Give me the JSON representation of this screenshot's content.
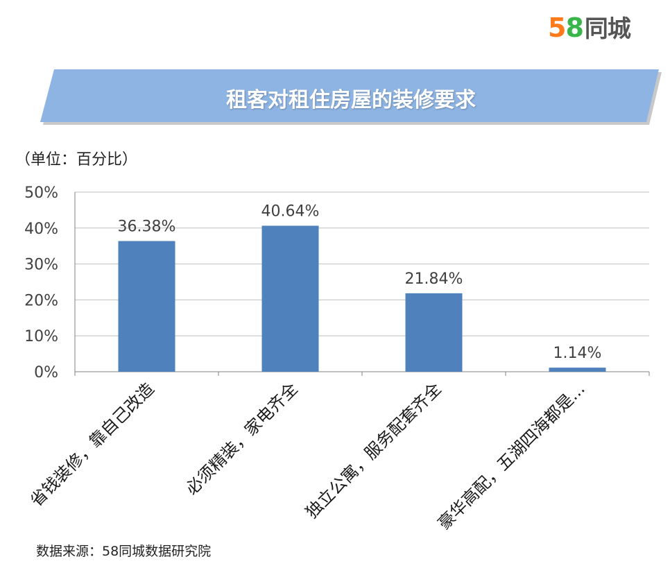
{
  "logo": {
    "num5": "5",
    "num8": "8",
    "name": "同城"
  },
  "chart_data": {
    "type": "bar",
    "title": "租客对租住房屋的装修要求",
    "unit_label": "（单位：百分比）",
    "categories": [
      "省钱装修，靠自己改造",
      "必须精装，家电齐全",
      "独立公寓，服务配套齐全",
      "豪华高配，五湖四海都是..."
    ],
    "values": [
      36.38,
      40.64,
      21.84,
      1.14
    ],
    "data_labels": [
      "36.38%",
      "40.64%",
      "21.84%",
      "1.14%"
    ],
    "y_ticks": [
      "0%",
      "10%",
      "20%",
      "30%",
      "40%",
      "50%"
    ],
    "ylim": [
      0,
      50
    ],
    "xlabel": "",
    "ylabel": "",
    "grid": true,
    "colors": {
      "bar": "#4f81bd",
      "banner": "#8eb4e3",
      "grid": "#bfbfbf"
    },
    "source": "数据来源：58同城数据研究院"
  }
}
